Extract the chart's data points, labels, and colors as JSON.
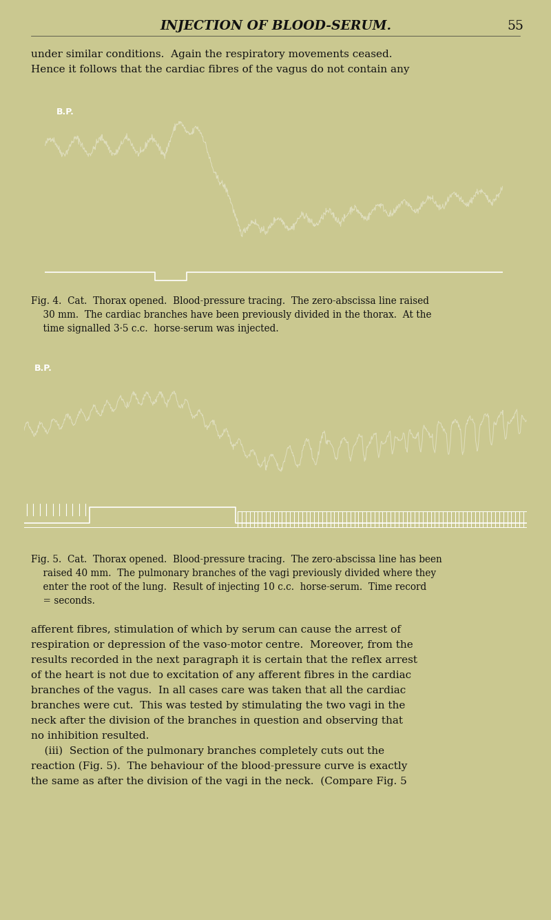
{
  "page_bg": "#cac890",
  "header_title": "INJECTION OF BLOOD-SERUM.",
  "header_page": "55",
  "intro_line1": "under similar conditions.  Again the respiratory movements ceased.",
  "intro_line2": "Hence it follows that the cardiac fibres of the vagus do not contain any",
  "fig4_caption": [
    "Fig. 4.  Cat.  Thorax opened.  Blood-pressure tracing.  The zero-abscissa line raised",
    "    30 mm.  The cardiac branches have been previously divided in the thorax.  At the",
    "    time signalled 3·5 c.c.  horse-serum was injected."
  ],
  "fig5_caption": [
    "Fig. 5.  Cat.  Thorax opened.  Blood-pressure tracing.  The zero-abscissa line has been",
    "    raised 40 mm.  The pulmonary branches of the vagi previously divided where they",
    "    enter the root of the lung.  Result of injecting 10 c.c.  horse-serum.  Time record",
    "    = seconds."
  ],
  "body_text": [
    "afferent fibres, stimulation of which by serum can cause the arrest of",
    "respiration or depression of the vaso-motor centre.  Moreover, from the",
    "results recorded in the next paragraph it is certain that the reflex arrest",
    "of the heart is not due to excitation of any afferent fibres in the cardiac",
    "branches of the vagus.  In all cases care was taken that all the cardiac",
    "branches were cut.  This was tested by stimulating the two vagi in the",
    "neck after the division of the branches in question and observing that",
    "no inhibition resulted.",
    "    (iii)  Section of the pulmonary branches completely cuts out the",
    "reaction (Fig. 5).  The behaviour of the blood-pressure curve is exactly",
    "the same as after the division of the vagi in the neck.  (Compare Fig. 5"
  ],
  "trace_color": "#e0dfc0",
  "white": "#ffffff",
  "black": "#000000"
}
